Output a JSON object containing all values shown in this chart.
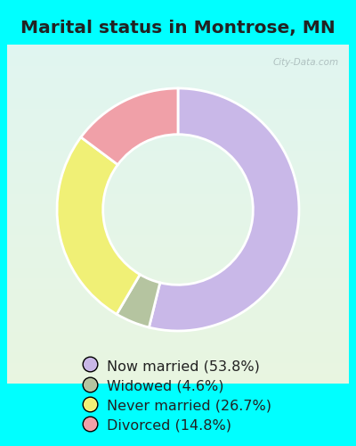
{
  "title": "Marital status in Montrose, MN",
  "slices": [
    53.8,
    4.6,
    26.7,
    14.8
  ],
  "labels": [
    "Now married (53.8%)",
    "Widowed (4.6%)",
    "Never married (26.7%)",
    "Divorced (14.8%)"
  ],
  "colors": [
    "#c9b8e8",
    "#b5c4a0",
    "#f0f076",
    "#f0a0a8"
  ],
  "bg_color": "#00ffff",
  "panel_color_tl": [
    0.88,
    0.96,
    0.94
  ],
  "panel_color_br": [
    0.9,
    0.96,
    0.88
  ],
  "donut_hole": 0.62,
  "start_angle": 90,
  "title_fontsize": 14.5,
  "legend_fontsize": 11.5,
  "watermark": "City-Data.com"
}
